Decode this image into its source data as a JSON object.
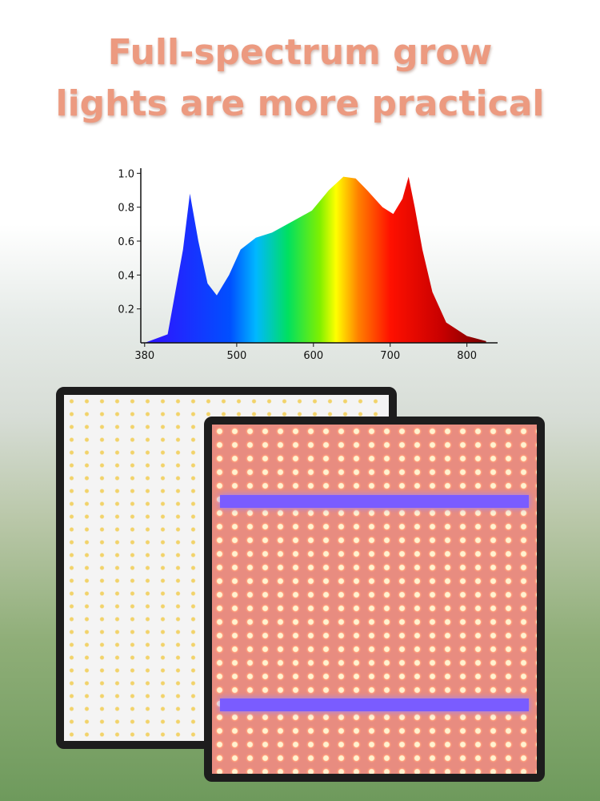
{
  "header": {
    "title_lines": [
      "Full-spectrum grow",
      "lights are more practical"
    ]
  },
  "chart_data": {
    "type": "area",
    "x": [
      380,
      410,
      430,
      439,
      450,
      462,
      474,
      490,
      505,
      525,
      546,
      570,
      598,
      620,
      639,
      655,
      670,
      690,
      704,
      716,
      724,
      732,
      742,
      755,
      773,
      800,
      825
    ],
    "values": [
      0,
      0.05,
      0.55,
      0.88,
      0.6,
      0.35,
      0.28,
      0.4,
      0.55,
      0.62,
      0.65,
      0.71,
      0.78,
      0.9,
      0.98,
      0.97,
      0.9,
      0.8,
      0.76,
      0.85,
      0.98,
      0.8,
      0.55,
      0.3,
      0.12,
      0.04,
      0.01
    ],
    "xlim": [
      375,
      840
    ],
    "ylim": [
      0,
      1.03
    ],
    "xticks": [
      380,
      500,
      600,
      700,
      800
    ],
    "yticks": [
      0.2,
      0.4,
      0.6,
      0.8,
      {
        "value": 1,
        "label": "1.0"
      }
    ]
  }
}
